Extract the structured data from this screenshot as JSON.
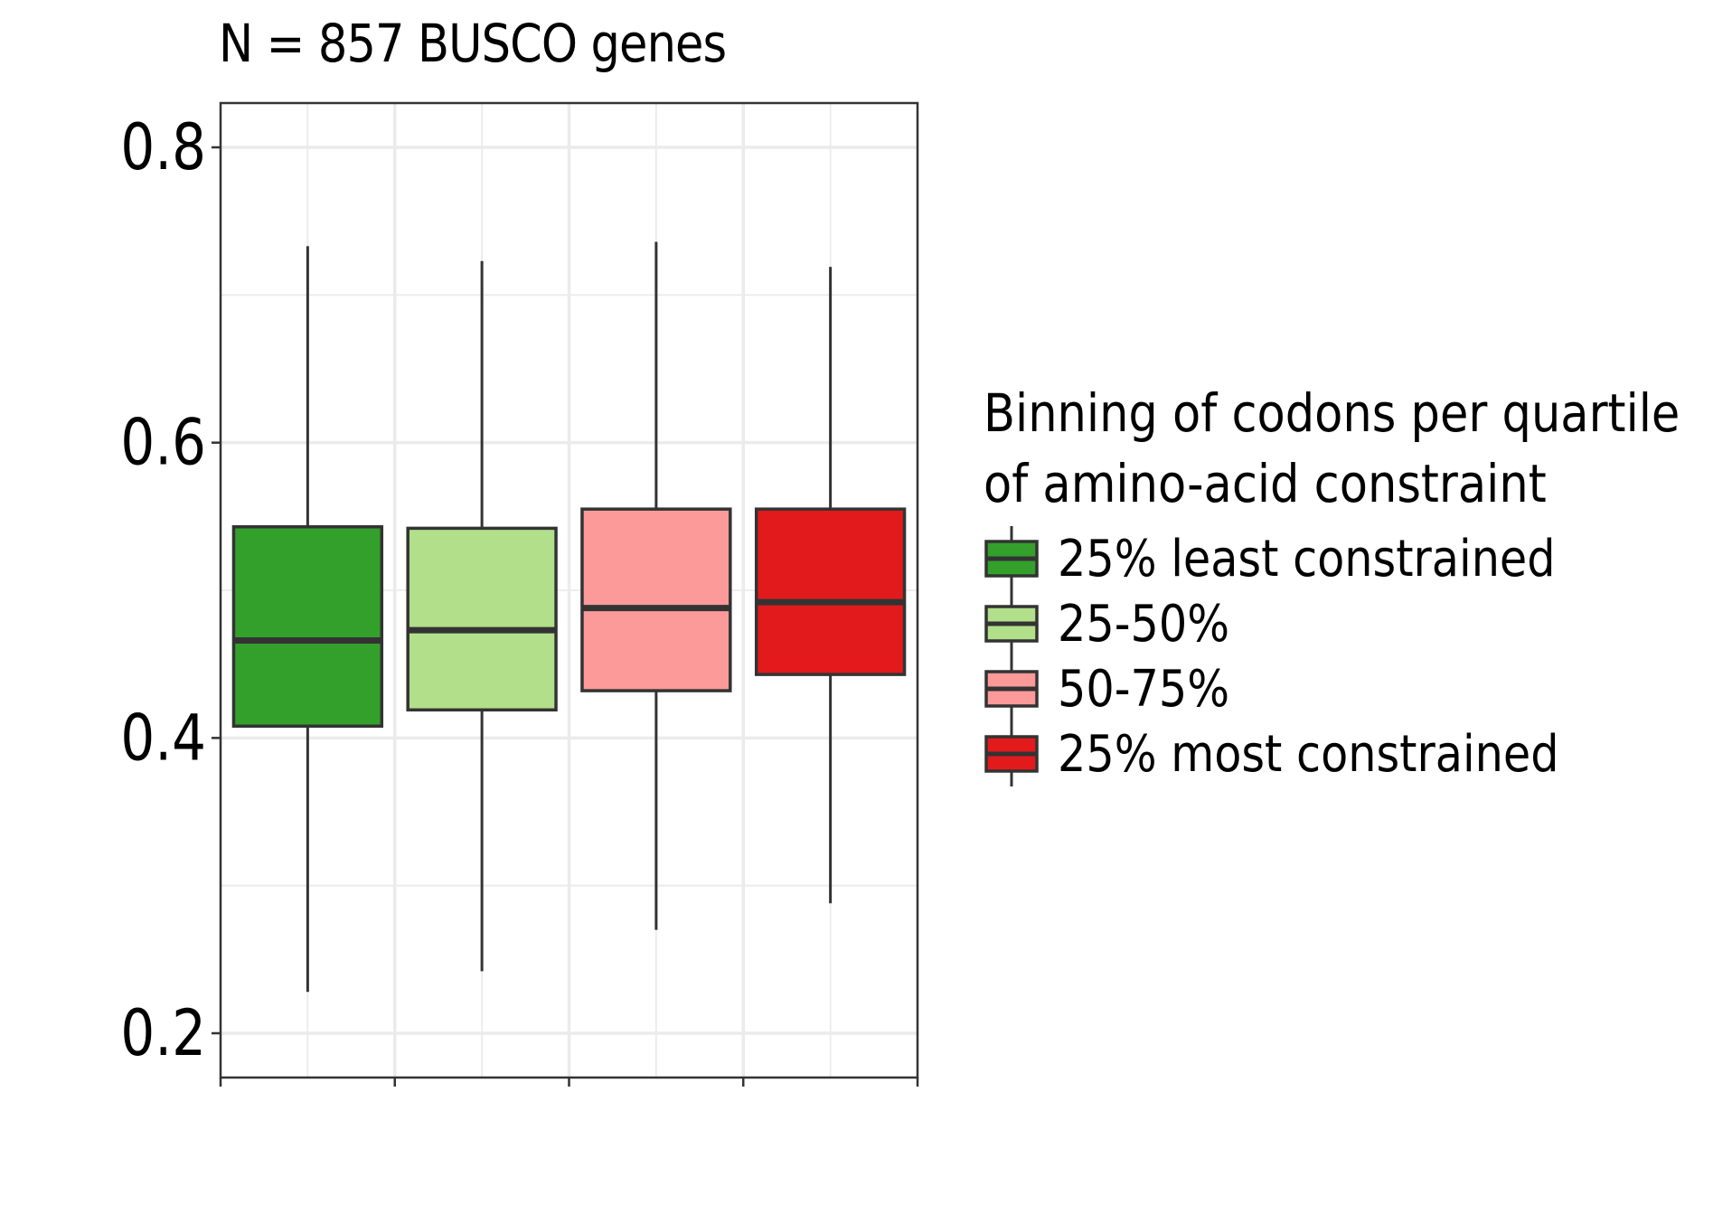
{
  "chart_data": {
    "type": "box",
    "title": "N = 857 BUSCO genes",
    "xlabel": "",
    "ylabel": "",
    "ylim": [
      0.17,
      0.83
    ],
    "yticks": [
      0.2,
      0.4,
      0.6,
      0.8
    ],
    "ytick_labels": [
      "0.2",
      "0.4",
      "0.6",
      "0.8"
    ],
    "grid": true,
    "legend_position": "right",
    "legend_title": [
      "Binning of codons per quartile",
      "of amino-acid constraint"
    ],
    "series": [
      {
        "name": "25% least constrained",
        "color": "#33a02c",
        "whisker_low": 0.228,
        "q1": 0.408,
        "median": 0.466,
        "q3": 0.543,
        "whisker_high": 0.733
      },
      {
        "name": "25-50%",
        "color": "#b2df8a",
        "whisker_low": 0.242,
        "q1": 0.419,
        "median": 0.473,
        "q3": 0.542,
        "whisker_high": 0.723
      },
      {
        "name": "50-75%",
        "color": "#fb9a99",
        "whisker_low": 0.27,
        "q1": 0.432,
        "median": 0.488,
        "q3": 0.555,
        "whisker_high": 0.736
      },
      {
        "name": "25% most constrained",
        "color": "#e31a1c",
        "whisker_low": 0.288,
        "q1": 0.443,
        "median": 0.492,
        "q3": 0.555,
        "whisker_high": 0.719
      }
    ]
  }
}
